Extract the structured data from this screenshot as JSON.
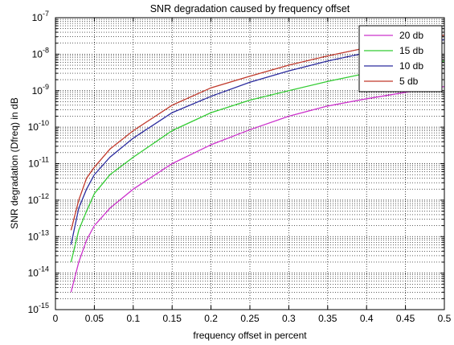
{
  "chart_data": {
    "type": "line",
    "title": "SNR degradation caused by frequency offset",
    "xlabel": "frequency offset in percent",
    "ylabel": "SNR degradation (Dfreq) in dB",
    "xlim": [
      0,
      0.5
    ],
    "ylim": [
      1e-15,
      1e-07
    ],
    "yscale": "log",
    "grid": "on (major and minor, dotted)",
    "legend_position": "top-right",
    "x_ticks": [
      0,
      0.05,
      0.1,
      0.15,
      0.2,
      0.25,
      0.3,
      0.35,
      0.4,
      0.45,
      0.5
    ],
    "x_tick_labels": [
      "0",
      "0.05",
      "0.1",
      "0.15",
      "0.2",
      "0.25",
      "0.3",
      "0.35",
      "0.4",
      "0.45",
      "0.5"
    ],
    "y_tick_exponents": [
      -15,
      -14,
      -13,
      -12,
      -11,
      -10,
      -9,
      -8,
      -7
    ],
    "y_tick_base": "10",
    "x": [
      0.02,
      0.03,
      0.04,
      0.05,
      0.07,
      0.1,
      0.15,
      0.2,
      0.25,
      0.3,
      0.35,
      0.4,
      0.45,
      0.5
    ],
    "series": [
      {
        "name": "20 db",
        "color": "#cc33cc",
        "values": [
          3e-15,
          2e-14,
          8e-14,
          2e-13,
          6e-13,
          2e-12,
          1e-11,
          3.3e-11,
          8.5e-11,
          2e-10,
          3.8e-10,
          6e-10,
          9e-10,
          1.3e-09
        ]
      },
      {
        "name": "15 db",
        "color": "#33cc33",
        "values": [
          2e-14,
          1.5e-13,
          5e-13,
          1.5e-12,
          5e-12,
          1.5e-11,
          8e-11,
          2.5e-10,
          5.5e-10,
          1e-09,
          1.8e-09,
          3e-09,
          4.5e-09,
          6.5e-09
        ]
      },
      {
        "name": "10 db",
        "color": "#2b2b9e",
        "values": [
          6e-14,
          6e-13,
          2e-12,
          5e-12,
          1.5e-11,
          5e-11,
          2.5e-10,
          7e-10,
          1.7e-09,
          3.5e-09,
          6.5e-09,
          1.1e-08,
          1.7e-08,
          2.5e-08
        ]
      },
      {
        "name": "5 db",
        "color": "#c0392b",
        "values": [
          1.5e-13,
          1e-12,
          4e-12,
          8e-12,
          2.5e-11,
          8e-11,
          4e-10,
          1.2e-09,
          2.5e-09,
          5e-09,
          9e-09,
          1.5e-08,
          2.3e-08,
          3.3e-08
        ]
      }
    ]
  }
}
